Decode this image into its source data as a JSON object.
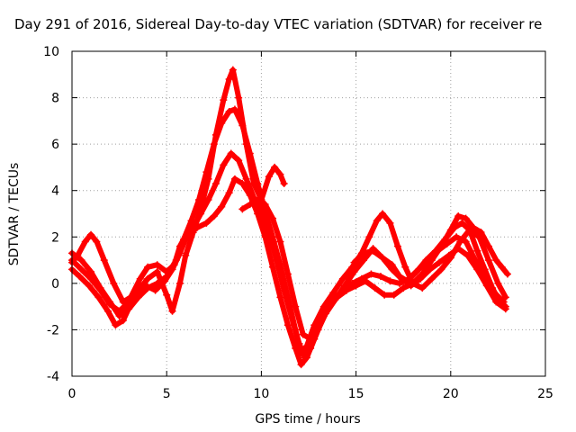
{
  "chart_data": {
    "type": "scatter",
    "title": "Day 291 of 2016, Sidereal Day-to-day VTEC variation (SDTVAR) for receiver re",
    "xlabel": "GPS time / hours",
    "ylabel": "SDTVAR / TECUs",
    "xlim": [
      0,
      25
    ],
    "ylim": [
      -4,
      10
    ],
    "xticks": [
      0,
      5,
      10,
      15,
      20,
      25
    ],
    "yticks": [
      -4,
      -2,
      0,
      2,
      4,
      6,
      8,
      10
    ],
    "grid": true,
    "marker": "+",
    "color": "#ff0000",
    "series": [
      {
        "points": [
          [
            0,
            0.9
          ],
          [
            0.3,
            1.2
          ],
          [
            0.7,
            1.8
          ],
          [
            1.0,
            2.1
          ],
          [
            1.3,
            1.8
          ],
          [
            1.7,
            1.0
          ],
          [
            2.2,
            0.0
          ],
          [
            2.7,
            -0.8
          ],
          [
            3.1,
            -0.6
          ],
          [
            3.6,
            0.2
          ],
          [
            4.0,
            0.7
          ],
          [
            4.5,
            0.8
          ],
          [
            5.0,
            0.5
          ],
          [
            5.4,
            0.8
          ],
          [
            5.7,
            1.6
          ],
          [
            6.1,
            2.2
          ],
          [
            6.6,
            2.4
          ],
          [
            7.1,
            2.6
          ],
          [
            7.5,
            2.9
          ],
          [
            7.9,
            3.3
          ],
          [
            8.3,
            3.9
          ],
          [
            8.6,
            4.5
          ],
          [
            9.0,
            4.3
          ],
          [
            9.4,
            3.8
          ],
          [
            9.8,
            3.0
          ],
          [
            10.2,
            2.0
          ],
          [
            10.6,
            0.7
          ],
          [
            11.0,
            -0.6
          ],
          [
            11.4,
            -1.8
          ],
          [
            11.8,
            -2.8
          ],
          [
            12.1,
            -3.5
          ],
          [
            12.4,
            -3.2
          ],
          [
            12.8,
            -2.4
          ],
          [
            13.3,
            -1.4
          ],
          [
            13.8,
            -0.7
          ],
          [
            14.3,
            -0.3
          ],
          [
            14.8,
            0.0
          ],
          [
            15.3,
            0.2
          ],
          [
            15.8,
            0.4
          ],
          [
            16.3,
            0.3
          ],
          [
            16.8,
            0.1
          ],
          [
            17.3,
            0.0
          ],
          [
            17.8,
            0.2
          ],
          [
            18.3,
            0.6
          ],
          [
            18.8,
            1.0
          ],
          [
            19.3,
            1.4
          ],
          [
            19.8,
            1.7
          ],
          [
            20.3,
            2.0
          ],
          [
            20.8,
            1.8
          ],
          [
            21.3,
            1.0
          ],
          [
            21.8,
            0.2
          ],
          [
            22.3,
            -0.4
          ],
          [
            22.8,
            -0.8
          ]
        ]
      },
      {
        "points": [
          [
            0,
            0.6
          ],
          [
            0.4,
            0.3
          ],
          [
            0.9,
            -0.1
          ],
          [
            1.4,
            -0.6
          ],
          [
            1.9,
            -1.2
          ],
          [
            2.3,
            -1.8
          ],
          [
            2.7,
            -1.6
          ],
          [
            3.1,
            -0.9
          ],
          [
            3.5,
            -0.4
          ],
          [
            3.9,
            -0.1
          ],
          [
            4.4,
            -0.3
          ],
          [
            4.9,
            0.1
          ],
          [
            5.3,
            0.6
          ],
          [
            5.7,
            1.3
          ],
          [
            6.0,
            1.9
          ],
          [
            6.4,
            2.4
          ],
          [
            6.8,
            3.0
          ],
          [
            7.2,
            3.6
          ],
          [
            7.6,
            4.3
          ],
          [
            8.0,
            5.1
          ],
          [
            8.4,
            5.6
          ],
          [
            8.8,
            5.3
          ],
          [
            9.2,
            4.5
          ],
          [
            9.6,
            3.7
          ],
          [
            10.0,
            3.1
          ],
          [
            10.4,
            2.2
          ],
          [
            10.8,
            1.0
          ],
          [
            11.2,
            -0.3
          ],
          [
            11.6,
            -1.5
          ],
          [
            12.0,
            -2.6
          ],
          [
            12.3,
            -3.2
          ],
          [
            12.6,
            -2.8
          ],
          [
            13.0,
            -2.0
          ],
          [
            13.4,
            -1.3
          ],
          [
            13.9,
            -0.7
          ],
          [
            14.4,
            -0.1
          ],
          [
            14.9,
            0.5
          ],
          [
            15.4,
            1.0
          ],
          [
            15.9,
            1.5
          ],
          [
            16.4,
            1.1
          ],
          [
            16.9,
            0.6
          ],
          [
            17.4,
            0.2
          ],
          [
            17.9,
            -0.1
          ],
          [
            18.4,
            0.2
          ],
          [
            18.9,
            0.6
          ],
          [
            19.4,
            0.9
          ],
          [
            19.9,
            1.2
          ],
          [
            20.4,
            1.5
          ],
          [
            20.9,
            1.2
          ],
          [
            21.4,
            0.6
          ],
          [
            21.9,
            -0.1
          ],
          [
            22.4,
            -0.8
          ],
          [
            22.9,
            -1.1
          ]
        ]
      },
      {
        "points": [
          [
            0,
            1.3
          ],
          [
            0.5,
            1.0
          ],
          [
            1.0,
            0.5
          ],
          [
            1.5,
            -0.2
          ],
          [
            2.0,
            -0.8
          ],
          [
            2.5,
            -1.4
          ],
          [
            3.0,
            -1.1
          ],
          [
            3.5,
            -0.6
          ],
          [
            4.0,
            -0.2
          ],
          [
            4.5,
            0.0
          ],
          [
            5.0,
            0.3
          ],
          [
            5.5,
            1.0
          ],
          [
            5.9,
            1.9
          ],
          [
            6.3,
            2.7
          ],
          [
            6.7,
            3.6
          ],
          [
            7.1,
            4.8
          ],
          [
            7.5,
            6.0
          ],
          [
            7.9,
            6.9
          ],
          [
            8.3,
            7.4
          ],
          [
            8.6,
            7.5
          ],
          [
            9.0,
            6.8
          ],
          [
            9.4,
            5.6
          ],
          [
            9.8,
            4.3
          ],
          [
            10.2,
            3.1
          ],
          [
            10.6,
            2.0
          ],
          [
            11.0,
            0.8
          ],
          [
            11.4,
            -0.6
          ],
          [
            11.8,
            -2.0
          ],
          [
            12.1,
            -3.0
          ],
          [
            12.4,
            -2.7
          ],
          [
            12.8,
            -1.8
          ],
          [
            13.3,
            -1.0
          ],
          [
            13.8,
            -0.4
          ],
          [
            14.3,
            0.2
          ],
          [
            14.8,
            0.7
          ],
          [
            15.3,
            1.3
          ],
          [
            15.7,
            2.0
          ],
          [
            16.1,
            2.7
          ],
          [
            16.4,
            3.0
          ],
          [
            16.8,
            2.6
          ],
          [
            17.2,
            1.6
          ],
          [
            17.6,
            0.7
          ],
          [
            18.0,
            0.0
          ],
          [
            18.5,
            -0.2
          ],
          [
            19.0,
            0.2
          ],
          [
            19.5,
            0.6
          ],
          [
            20.0,
            1.1
          ],
          [
            20.5,
            1.8
          ],
          [
            21.0,
            2.3
          ],
          [
            21.5,
            2.0
          ],
          [
            22.0,
            1.0
          ],
          [
            22.5,
            0.0
          ],
          [
            22.9,
            -0.6
          ]
        ]
      },
      {
        "points": [
          [
            0,
            1.0
          ],
          [
            0.5,
            0.6
          ],
          [
            1.0,
            0.2
          ],
          [
            1.5,
            -0.3
          ],
          [
            2.0,
            -0.9
          ],
          [
            2.5,
            -1.2
          ],
          [
            3.0,
            -0.8
          ],
          [
            3.5,
            -0.3
          ],
          [
            4.0,
            0.2
          ],
          [
            4.5,
            0.5
          ],
          [
            5.0,
            -0.5
          ],
          [
            5.3,
            -1.2
          ],
          [
            5.7,
            0.0
          ],
          [
            6.0,
            1.2
          ],
          [
            6.4,
            2.2
          ],
          [
            6.8,
            3.2
          ],
          [
            7.2,
            4.5
          ],
          [
            7.6,
            6.4
          ],
          [
            8.0,
            7.9
          ],
          [
            8.3,
            8.8
          ],
          [
            8.5,
            9.2
          ],
          [
            8.8,
            8.0
          ],
          [
            9.2,
            6.0
          ],
          [
            9.6,
            4.3
          ],
          [
            10.0,
            3.6
          ],
          [
            10.4,
            4.6
          ],
          [
            10.7,
            5.0
          ],
          [
            11.0,
            4.7
          ],
          [
            11.2,
            4.3
          ]
        ]
      },
      {
        "points": [
          [
            9.0,
            3.2
          ],
          [
            9.4,
            3.4
          ],
          [
            9.8,
            3.6
          ],
          [
            10.2,
            3.4
          ],
          [
            10.6,
            2.8
          ],
          [
            11.0,
            1.8
          ],
          [
            11.4,
            0.4
          ],
          [
            11.8,
            -1.0
          ],
          [
            12.2,
            -2.2
          ],
          [
            12.6,
            -2.4
          ],
          [
            13.0,
            -1.8
          ],
          [
            13.5,
            -1.1
          ],
          [
            14.0,
            -0.6
          ],
          [
            14.5,
            -0.3
          ],
          [
            15.0,
            -0.1
          ],
          [
            15.5,
            0.1
          ],
          [
            16.0,
            -0.2
          ],
          [
            16.5,
            -0.5
          ],
          [
            17.0,
            -0.5
          ],
          [
            17.5,
            -0.2
          ],
          [
            18.0,
            0.0
          ],
          [
            18.5,
            0.4
          ],
          [
            19.0,
            1.0
          ],
          [
            19.5,
            1.6
          ],
          [
            20.0,
            2.3
          ],
          [
            20.4,
            2.9
          ],
          [
            20.8,
            2.8
          ],
          [
            21.2,
            2.4
          ],
          [
            21.6,
            2.2
          ],
          [
            22.0,
            1.6
          ],
          [
            22.4,
            1.0
          ],
          [
            22.7,
            0.7
          ],
          [
            23.0,
            0.4
          ]
        ]
      },
      {
        "points": [
          [
            14.9,
            0.9
          ],
          [
            15.4,
            1.3
          ],
          [
            15.9,
            1.4
          ],
          [
            16.4,
            1.1
          ],
          [
            16.9,
            0.8
          ],
          [
            17.3,
            0.3
          ],
          [
            17.7,
            0.1
          ],
          [
            18.2,
            0.5
          ],
          [
            18.7,
            1.0
          ],
          [
            19.2,
            1.4
          ],
          [
            19.7,
            1.9
          ],
          [
            20.2,
            2.4
          ],
          [
            20.6,
            2.6
          ],
          [
            21.0,
            2.3
          ],
          [
            21.4,
            1.4
          ],
          [
            21.8,
            0.6
          ],
          [
            22.2,
            -0.2
          ],
          [
            22.6,
            -0.8
          ],
          [
            22.9,
            -1.0
          ]
        ]
      }
    ]
  }
}
